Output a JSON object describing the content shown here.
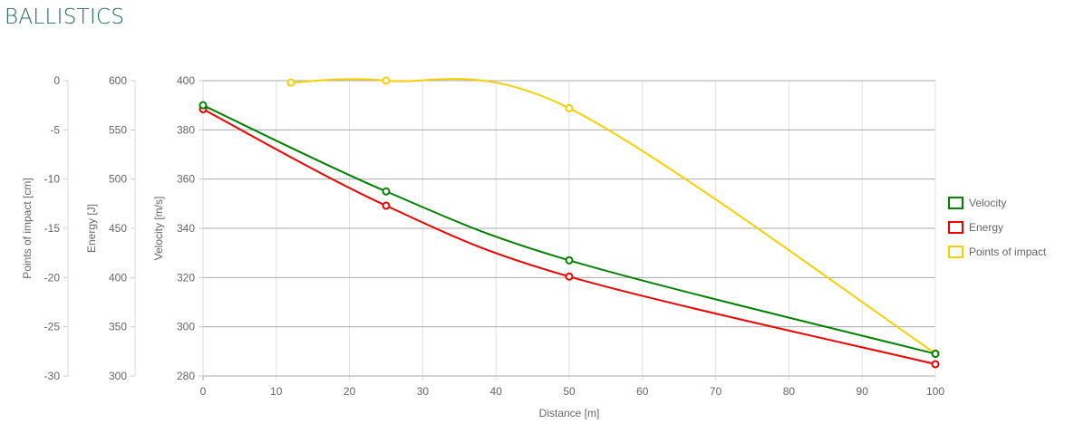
{
  "title": "BALLISTICS",
  "chart_data": {
    "type": "line",
    "x": [
      0,
      25,
      50,
      100
    ],
    "xlabel": "Distance [m]",
    "xlim": [
      0,
      100
    ],
    "xticks": [
      "0",
      "10",
      "20",
      "30",
      "40",
      "50",
      "60",
      "70",
      "80",
      "90",
      "100"
    ],
    "grid": true,
    "legend_position": "right",
    "axes": [
      {
        "id": "impact",
        "label": "Points of impact [cm]",
        "ylim": [
          -30,
          0
        ],
        "ticks": [
          "0",
          "-5",
          "-10",
          "-15",
          "-20",
          "-25",
          "-30"
        ]
      },
      {
        "id": "energy",
        "label": "Energy [J]",
        "ylim": [
          300,
          600
        ],
        "ticks": [
          "600",
          "550",
          "500",
          "450",
          "400",
          "350",
          "300"
        ]
      },
      {
        "id": "velocity",
        "label": "Velocity [m/s]",
        "ylim": [
          280,
          400
        ],
        "ticks": [
          "400",
          "380",
          "360",
          "340",
          "320",
          "300",
          "280"
        ]
      }
    ],
    "series": [
      {
        "name": "Velocity",
        "axis": "velocity",
        "color": "#008000",
        "points": [
          [
            0,
            390
          ],
          [
            25,
            355
          ],
          [
            50,
            327
          ],
          [
            100,
            289
          ]
        ]
      },
      {
        "name": "Energy",
        "axis": "energy",
        "color": "#ee0000",
        "points": [
          [
            0,
            571
          ],
          [
            25,
            473
          ],
          [
            50,
            401
          ],
          [
            100,
            312
          ]
        ]
      },
      {
        "name": "Points of impact",
        "axis": "impact",
        "color": "#f5d000",
        "points": [
          [
            12,
            -0.2
          ],
          [
            25,
            0
          ],
          [
            50,
            -2.8
          ],
          [
            100,
            -27.7
          ]
        ]
      }
    ]
  }
}
